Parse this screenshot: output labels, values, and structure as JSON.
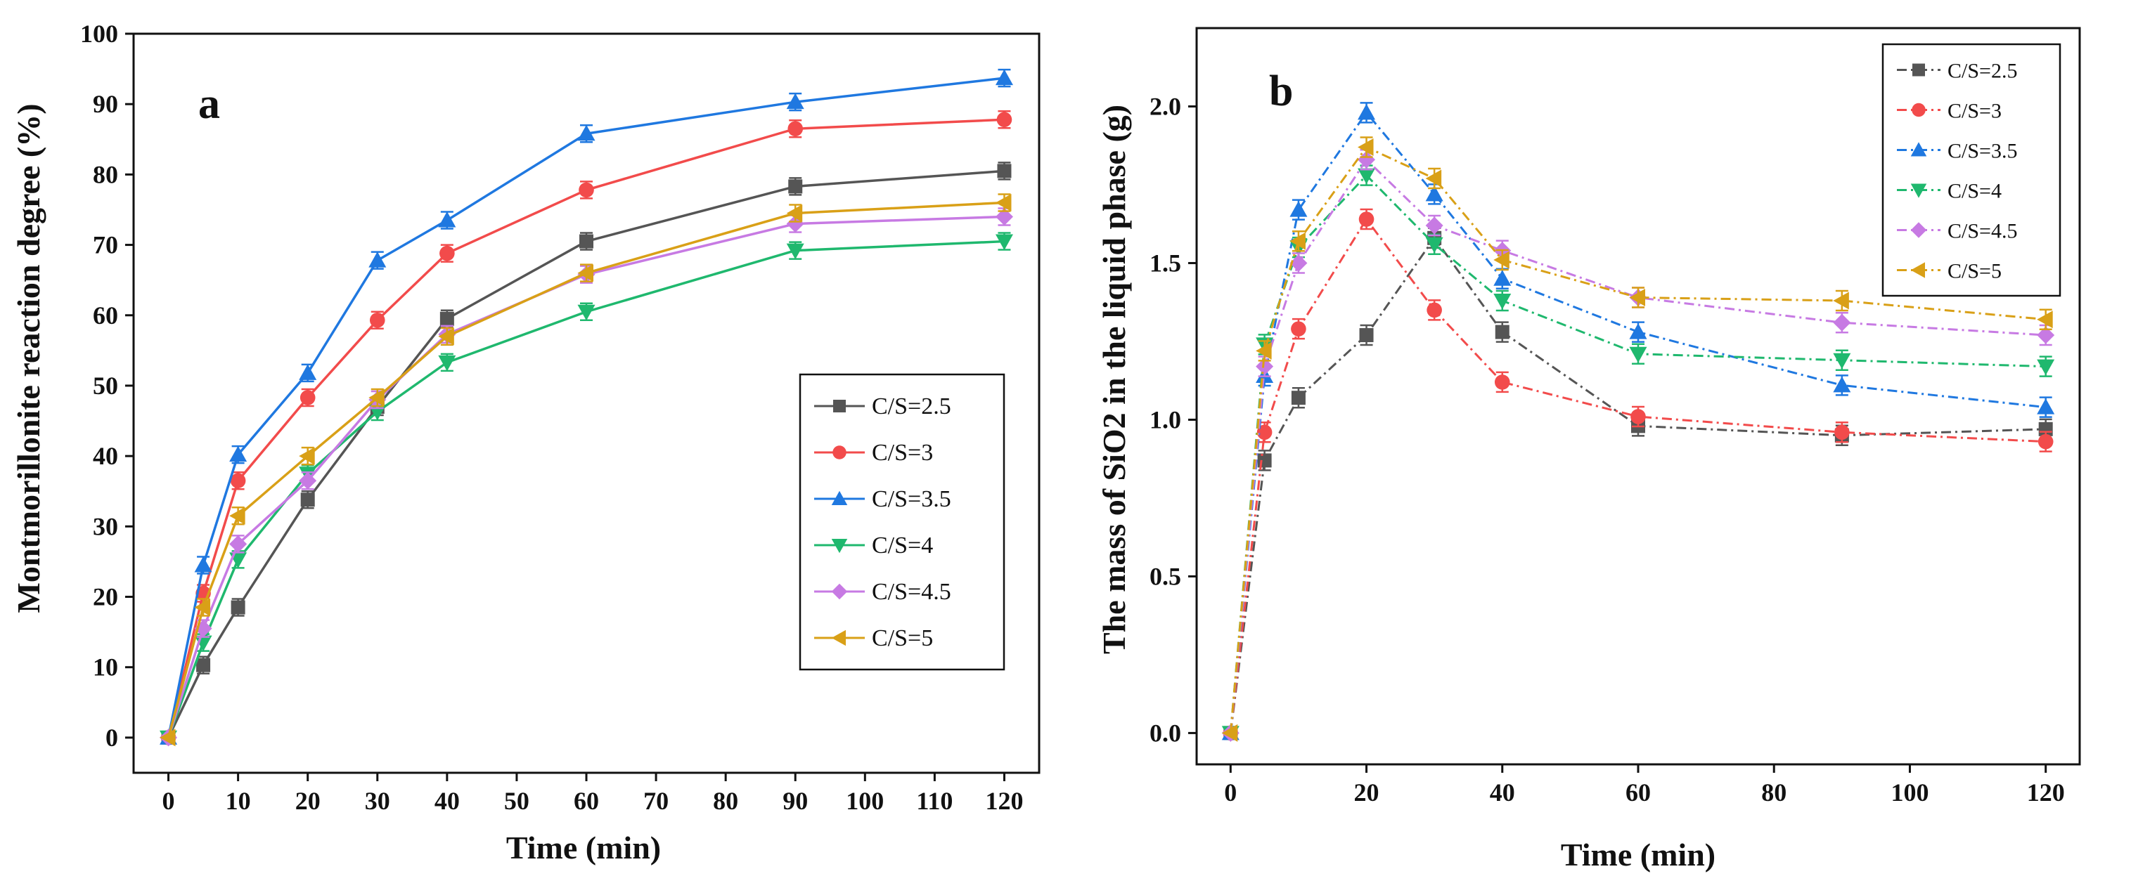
{
  "chart_data": [
    {
      "type": "line",
      "panel_label": "a",
      "xlabel": "Time (min)",
      "ylabel": "Montmorillonite reaction degree (%)",
      "xlim": [
        -5,
        125
      ],
      "ylim": [
        -5,
        100
      ],
      "xticks": [
        0,
        10,
        20,
        30,
        40,
        50,
        60,
        70,
        80,
        90,
        100,
        110,
        120
      ],
      "yticks": [
        0,
        10,
        20,
        30,
        40,
        50,
        60,
        70,
        80,
        90,
        100
      ],
      "legend_position": "center-right",
      "line_style": "solid",
      "x": [
        0,
        5,
        10,
        20,
        30,
        40,
        60,
        90,
        120
      ],
      "series": [
        {
          "name": "C/S=2.5",
          "color": "#555555",
          "marker": "square",
          "values": [
            0,
            10.3,
            18.5,
            33.8,
            47.0,
            59.5,
            70.5,
            78.3,
            80.5
          ]
        },
        {
          "name": "C/S=3",
          "color": "#f24b4b",
          "marker": "circle",
          "values": [
            0,
            20.5,
            36.5,
            48.3,
            59.3,
            68.8,
            77.8,
            86.5,
            87.8
          ]
        },
        {
          "name": "C/S=3.5",
          "color": "#1f78e0",
          "marker": "triangle-up",
          "values": [
            0,
            24.5,
            40.2,
            51.8,
            67.8,
            73.5,
            85.8,
            90.3,
            93.7
          ]
        },
        {
          "name": "C/S=4",
          "color": "#1fb86e",
          "marker": "triangle-down",
          "values": [
            0,
            13.5,
            25.3,
            37.5,
            46.3,
            53.3,
            60.5,
            69.2,
            70.5
          ]
        },
        {
          "name": "C/S=4.5",
          "color": "#c77ae3",
          "marker": "diamond",
          "values": [
            0,
            15.5,
            27.5,
            36.5,
            48.0,
            57.3,
            65.8,
            73.0,
            74.0
          ]
        },
        {
          "name": "C/S=5",
          "color": "#d9a017",
          "marker": "triangle-left",
          "values": [
            0,
            18.5,
            31.5,
            40.0,
            48.3,
            57.0,
            66.0,
            74.5,
            76.0
          ]
        }
      ]
    },
    {
      "type": "line",
      "panel_label": "b",
      "xlabel": "Time (min)",
      "ylabel": "The mass of SiO2 in the liquid phase (g)",
      "xlim": [
        -5,
        125
      ],
      "ylim": [
        -0.1,
        2.25
      ],
      "xticks": [
        0,
        20,
        40,
        60,
        80,
        100,
        120
      ],
      "yticks": [
        0.0,
        0.5,
        1.0,
        1.5,
        2.0
      ],
      "ytick_labels": [
        "0.0",
        "0.5",
        "1.0",
        "1.5",
        "2.0"
      ],
      "legend_position": "top-right",
      "line_style": "dash-dot",
      "x": [
        0,
        5,
        10,
        20,
        30,
        40,
        60,
        90,
        120
      ],
      "series": [
        {
          "name": "C/S=2.5",
          "color": "#555555",
          "marker": "square",
          "values": [
            0,
            0.87,
            1.07,
            1.27,
            1.58,
            1.28,
            0.98,
            0.95,
            0.97
          ]
        },
        {
          "name": "C/S=3",
          "color": "#f24b4b",
          "marker": "circle",
          "values": [
            0,
            0.96,
            1.29,
            1.64,
            1.35,
            1.12,
            1.01,
            0.96,
            0.93
          ]
        },
        {
          "name": "C/S=3.5",
          "color": "#1f78e0",
          "marker": "triangle-up",
          "values": [
            0,
            1.14,
            1.67,
            1.98,
            1.72,
            1.45,
            1.28,
            1.11,
            1.04
          ]
        },
        {
          "name": "C/S=4",
          "color": "#1fb86e",
          "marker": "triangle-down",
          "values": [
            0,
            1.24,
            1.55,
            1.78,
            1.56,
            1.38,
            1.21,
            1.19,
            1.17
          ]
        },
        {
          "name": "C/S=4.5",
          "color": "#c77ae3",
          "marker": "diamond",
          "values": [
            0,
            1.17,
            1.5,
            1.83,
            1.62,
            1.54,
            1.39,
            1.31,
            1.27
          ]
        },
        {
          "name": "C/S=5",
          "color": "#d9a017",
          "marker": "triangle-left",
          "values": [
            0,
            1.22,
            1.57,
            1.87,
            1.77,
            1.51,
            1.39,
            1.38,
            1.32
          ]
        }
      ]
    }
  ]
}
